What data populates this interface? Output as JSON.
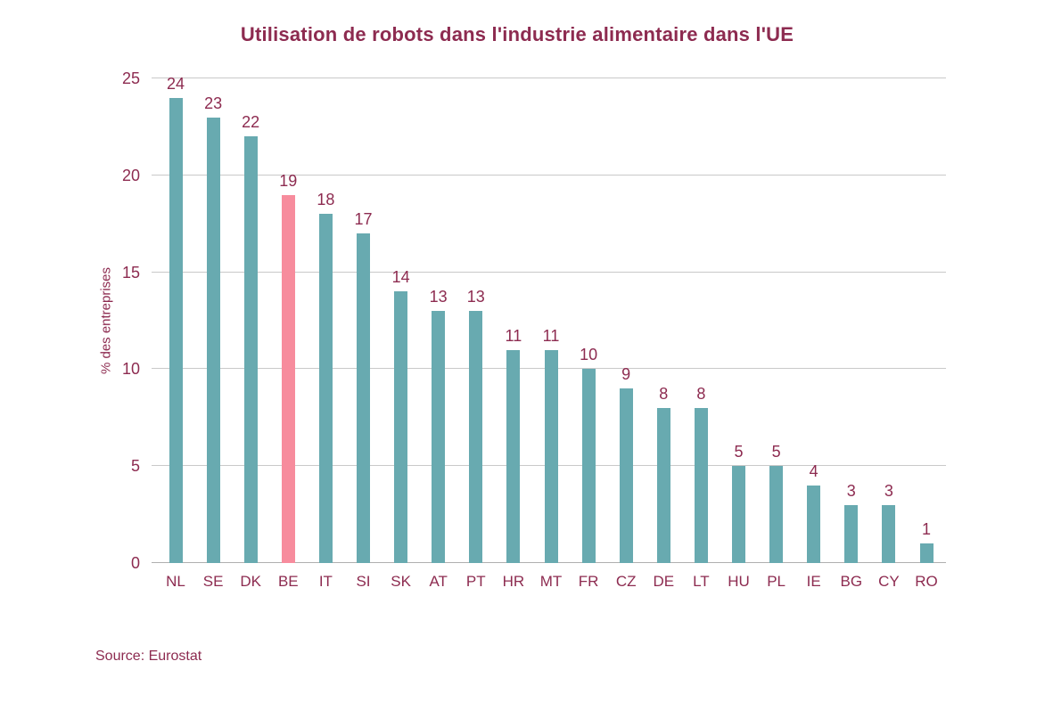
{
  "title": "Utilisation de robots dans l'industrie alimentaire dans l'UE",
  "source": "Source: Eurostat",
  "colors": {
    "bar": "#68aab0",
    "highlight": "#f78c9d",
    "text": "#8d2b50",
    "gridline": "#c9c9c9",
    "axisline": "#b0b0b0"
  },
  "chart_data": {
    "type": "bar",
    "title": "Utilisation de robots dans l'industrie alimentaire dans l'UE",
    "categories": [
      "NL",
      "SE",
      "DK",
      "BE",
      "IT",
      "SI",
      "SK",
      "AT",
      "PT",
      "HR",
      "MT",
      "FR",
      "CZ",
      "DE",
      "LT",
      "HU",
      "PL",
      "IE",
      "BG",
      "CY",
      "RO"
    ],
    "values": [
      24,
      23,
      22,
      19,
      18,
      17,
      14,
      13,
      13,
      11,
      11,
      10,
      9,
      8,
      8,
      5,
      5,
      4,
      3,
      3,
      1
    ],
    "highlighted_category": "BE",
    "xlabel": "",
    "ylabel": "% des entreprises",
    "ylim": [
      0,
      25
    ],
    "yticks": [
      0,
      5,
      10,
      15,
      20,
      25
    ],
    "grid": true,
    "legend": "none",
    "source": "Source: Eurostat"
  }
}
